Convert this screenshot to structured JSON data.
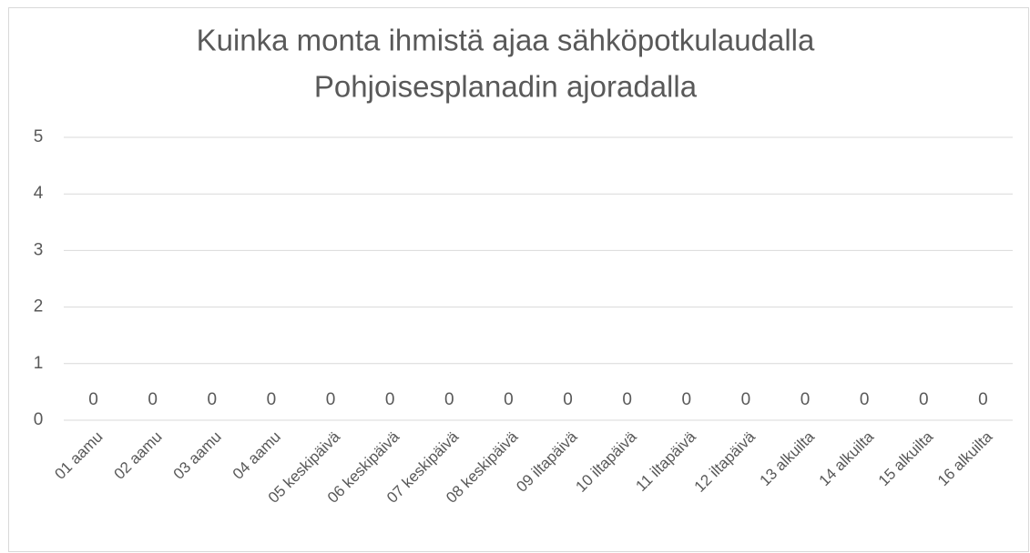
{
  "chart_data": {
    "type": "bar",
    "title": [
      "Kuinka monta ihmistä ajaa sähköpotkulaudalla",
      "Pohjoisesplanadin ajoradalla"
    ],
    "categories": [
      "01 aamu",
      "02 aamu",
      "03 aamu",
      "04 aamu",
      "05 keskipäivä",
      "06 keskipäivä",
      "07 keskipäivä",
      "08 keskipäivä",
      "09 iltapäivä",
      "10 iltapäivä",
      "11 iltapäivä",
      "12 iltapäivä",
      "13 alkuilta",
      "14 alkuilta",
      "15 alkuilta",
      "16 alkuilta"
    ],
    "values": [
      0,
      0,
      0,
      0,
      0,
      0,
      0,
      0,
      0,
      0,
      0,
      0,
      0,
      0,
      0,
      0
    ],
    "color": "#4472c4",
    "ylim": [
      0,
      5
    ],
    "yticks": [
      0,
      1,
      2,
      3,
      4,
      5
    ],
    "grid": true
  }
}
